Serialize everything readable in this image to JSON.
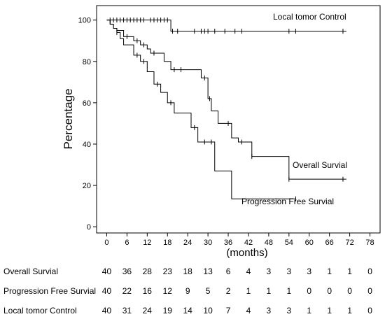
{
  "chart_data": {
    "type": "line",
    "step": true,
    "ylabel": "Percentage",
    "xlabel": "(months)",
    "xlim": [
      -3,
      81
    ],
    "ylim": [
      -3,
      107
    ],
    "xticks": [
      "0",
      "6",
      "12",
      "18",
      "24",
      "30",
      "36",
      "42",
      "48",
      "54",
      "60",
      "66",
      "72",
      "78"
    ],
    "yticks": [
      "0",
      "20",
      "40",
      "60",
      "80",
      "100"
    ],
    "series": [
      {
        "name": "Local tomor Control",
        "x": [
          0,
          19,
          71
        ],
        "y": [
          100,
          94.6,
          94.6
        ],
        "censor_x": [
          1,
          2,
          3,
          4,
          5,
          6,
          7,
          8,
          9,
          10,
          11,
          13,
          14,
          15,
          16,
          17,
          18,
          19.5,
          21,
          26,
          28,
          29,
          30,
          32,
          35,
          38,
          40,
          54,
          56,
          70
        ]
      },
      {
        "name": "Overall Survial",
        "x": [
          0,
          1,
          2,
          3,
          5,
          8,
          10,
          12,
          13,
          17,
          19,
          22,
          28,
          30,
          31,
          33,
          37,
          39,
          43,
          54,
          71
        ],
        "y": [
          100,
          98,
          96,
          95,
          92,
          90,
          88,
          86,
          84,
          80,
          76,
          76,
          72,
          62,
          56,
          50,
          43,
          41,
          34,
          23,
          23
        ],
        "censor_x": [
          6,
          9,
          11,
          14,
          20,
          22,
          29,
          30.5,
          36,
          40,
          43,
          54,
          70
        ]
      },
      {
        "name": "Progression Free Survial",
        "x": [
          0,
          1,
          2,
          3,
          4,
          5,
          8,
          10,
          12,
          14,
          16,
          18,
          20,
          25,
          27,
          32,
          37,
          56
        ],
        "y": [
          100,
          98,
          96,
          94,
          91,
          88,
          83,
          80,
          75,
          69,
          65,
          60,
          55,
          48,
          41,
          27,
          13.5,
          13.5
        ],
        "censor_x": [
          3,
          9,
          11,
          15,
          19,
          26,
          29,
          31,
          56
        ]
      }
    ],
    "annotations": [
      "Local tomor Control",
      "Overall Survial",
      "Progression Free Survial"
    ]
  },
  "risk_table": {
    "times": [
      0,
      6,
      12,
      18,
      24,
      30,
      36,
      42,
      48,
      54,
      60,
      66,
      72,
      78
    ],
    "rows": [
      {
        "label": "Overall Survial",
        "values": [
          "40",
          "36",
          "28",
          "23",
          "18",
          "13",
          "6",
          "4",
          "3",
          "3",
          "3",
          "1",
          "1",
          "0"
        ]
      },
      {
        "label": "Progression Free Survial",
        "values": [
          "40",
          "22",
          "16",
          "12",
          "9",
          "5",
          "2",
          "1",
          "1",
          "1",
          "0",
          "0",
          "0",
          "0"
        ]
      },
      {
        "label": "Local tomor Control",
        "values": [
          "40",
          "31",
          "24",
          "19",
          "14",
          "10",
          "7",
          "4",
          "3",
          "3",
          "1",
          "1",
          "1",
          "0"
        ]
      }
    ]
  }
}
